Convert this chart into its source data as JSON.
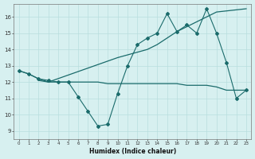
{
  "xlabel": "Humidex (Indice chaleur)",
  "bg_color": "#d7f0f0",
  "line_color": "#1a6b6b",
  "grid_color": "#b8dede",
  "xlim": [
    -0.5,
    23.5
  ],
  "ylim": [
    8.5,
    16.8
  ],
  "yticks": [
    9,
    10,
    11,
    12,
    13,
    14,
    15,
    16
  ],
  "xticks": [
    0,
    1,
    2,
    3,
    4,
    5,
    6,
    7,
    8,
    9,
    10,
    11,
    12,
    13,
    14,
    15,
    16,
    17,
    18,
    19,
    20,
    21,
    22,
    23
  ],
  "xtick_labels": [
    "0",
    "1",
    "2",
    "3",
    "4",
    "5",
    "6",
    "7",
    "8",
    "9",
    "10",
    "11",
    "12",
    "13",
    "14",
    "15",
    "16",
    "17",
    "18",
    "19",
    "20",
    "21",
    "22",
    "23"
  ],
  "line_diagonal_x": [
    0,
    1,
    2,
    3,
    10,
    13,
    14,
    15,
    16,
    17,
    18,
    19,
    20,
    23
  ],
  "line_diagonal_y": [
    12.7,
    12.5,
    12.2,
    12.0,
    13.5,
    14.0,
    14.3,
    14.7,
    15.1,
    15.4,
    15.7,
    16.0,
    16.3,
    16.5
  ],
  "line_zigzag_x": [
    0,
    1,
    2,
    3,
    4,
    5,
    6,
    7,
    8,
    9,
    10,
    11,
    12,
    13,
    14,
    15,
    16,
    17,
    18,
    19,
    20,
    21,
    22,
    23
  ],
  "line_zigzag_y": [
    12.7,
    12.5,
    12.2,
    12.1,
    12.0,
    12.0,
    11.1,
    10.2,
    9.3,
    9.4,
    11.3,
    13.0,
    14.3,
    14.7,
    15.0,
    16.2,
    15.1,
    15.5,
    15.0,
    16.5,
    15.0,
    13.2,
    11.0,
    11.5
  ],
  "line_flat_x": [
    2,
    3,
    4,
    5,
    6,
    7,
    8,
    9,
    10,
    11,
    12,
    13,
    14,
    15,
    16,
    17,
    18,
    19,
    20,
    21,
    22,
    23
  ],
  "line_flat_y": [
    12.1,
    12.0,
    12.0,
    12.0,
    12.0,
    12.0,
    12.0,
    11.9,
    11.9,
    11.9,
    11.9,
    11.9,
    11.9,
    11.9,
    11.9,
    11.8,
    11.8,
    11.8,
    11.7,
    11.5,
    11.5,
    11.5
  ]
}
